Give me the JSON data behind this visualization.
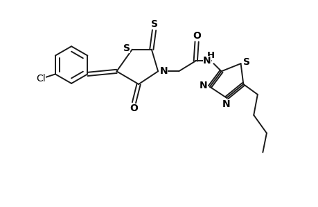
{
  "bg_color": "#ffffff",
  "line_color": "#1a1a1a",
  "line_width": 1.4,
  "font_size": 9.5,
  "figsize": [
    4.6,
    3.0
  ],
  "dpi": 100,
  "xlim": [
    0,
    11
  ],
  "ylim": [
    0,
    8
  ]
}
